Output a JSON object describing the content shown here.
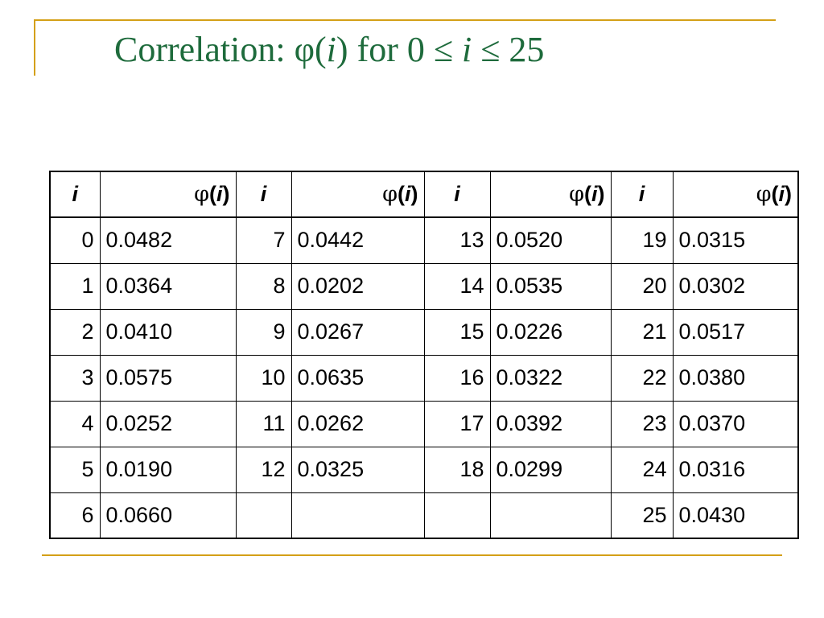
{
  "title": {
    "prefix": "Correlation: ",
    "phi": "φ",
    "open_paren": "(",
    "var": "i",
    "close_paren": ")",
    "middle": " for 0 ≤ ",
    "var2": "i",
    "suffix": " ≤ 25"
  },
  "table": {
    "header": {
      "i_label": "i",
      "phi_symbol": "φ",
      "phi_open": "(",
      "phi_var": "i",
      "phi_close": ")"
    },
    "rows": [
      [
        "0",
        "0.0482",
        "7",
        "0.0442",
        "13",
        "0.0520",
        "19",
        "0.0315"
      ],
      [
        "1",
        "0.0364",
        "8",
        "0.0202",
        "14",
        "0.0535",
        "20",
        "0.0302"
      ],
      [
        "2",
        "0.0410",
        "9",
        "0.0267",
        "15",
        "0.0226",
        "21",
        "0.0517"
      ],
      [
        "3",
        "0.0575",
        "10",
        "0.0635",
        "16",
        "0.0322",
        "22",
        "0.0380"
      ],
      [
        "4",
        "0.0252",
        "11",
        "0.0262",
        "17",
        "0.0392",
        "23",
        "0.0370"
      ],
      [
        "5",
        "0.0190",
        "12",
        "0.0325",
        "18",
        "0.0299",
        "24",
        "0.0316"
      ],
      [
        "6",
        "0.0660",
        "",
        "",
        "",
        "",
        "25",
        "0.0430"
      ]
    ]
  },
  "colors": {
    "title": "#1e6b3c",
    "frame": "#d4a017",
    "text": "#000000"
  }
}
